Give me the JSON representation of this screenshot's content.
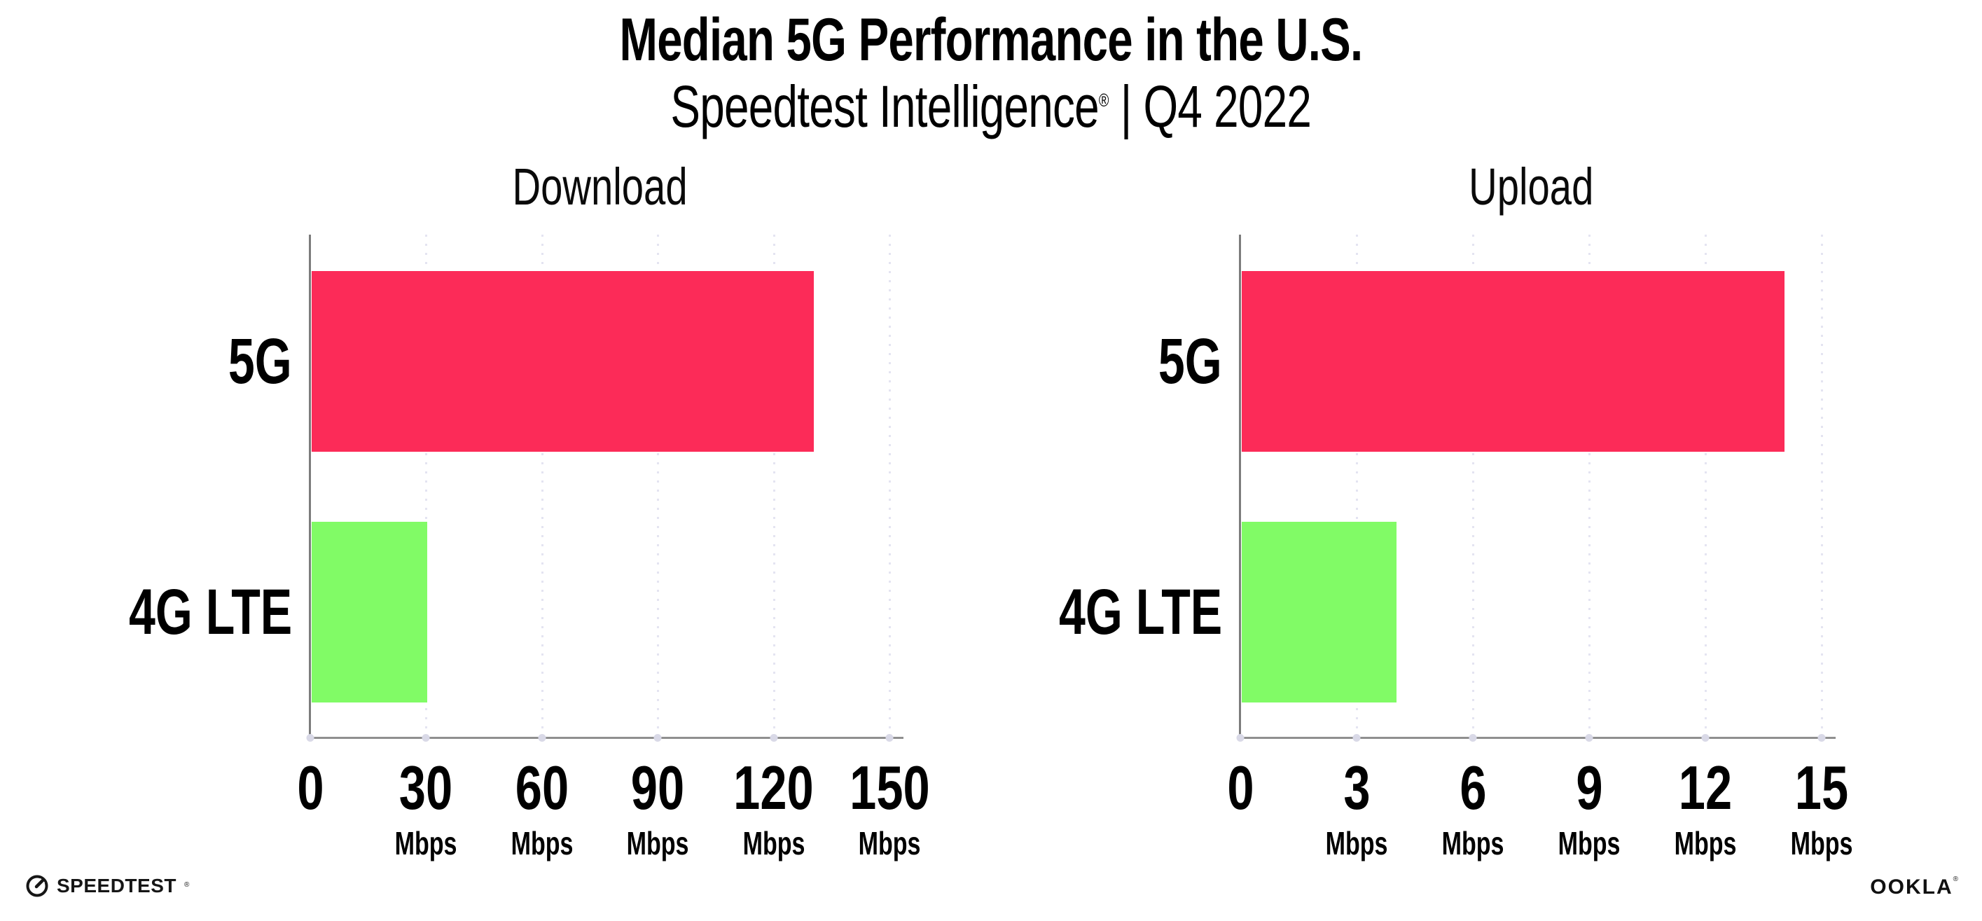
{
  "header": {
    "title": "Median 5G Performance in the U.S.",
    "subtitle_brand": "Speedtest Intelligence",
    "subtitle_mark": "®",
    "subtitle_rest": " | Q4 2022"
  },
  "chart_data": [
    {
      "type": "bar",
      "orientation": "horizontal",
      "title": "Download",
      "categories": [
        "5G",
        "4G LTE"
      ],
      "values": [
        130,
        30
      ],
      "unit": "Mbps",
      "xlim": [
        0,
        150
      ],
      "xticks": [
        0,
        30,
        60,
        90,
        120,
        150
      ],
      "grid": "dotted vertical gridlines at each tick",
      "legend": "none"
    },
    {
      "type": "bar",
      "orientation": "horizontal",
      "title": "Upload",
      "categories": [
        "5G",
        "4G LTE"
      ],
      "values": [
        14,
        4
      ],
      "unit": "Mbps",
      "xlim": [
        0,
        15
      ],
      "xticks": [
        0,
        3,
        6,
        9,
        12,
        15
      ],
      "grid": "dotted vertical gridlines at each tick",
      "legend": "none"
    }
  ],
  "colors": {
    "bar_5g": "#fc2b58",
    "bar_4g_lte": "#81fb66",
    "gridline": "#e4e4f1",
    "axis": "#8a8a8a",
    "axis_dot": "#d9d9e7",
    "text": "#000000"
  },
  "footer": {
    "speedtest_label": "SPEEDTEST",
    "speedtest_mark": "®",
    "ookla_label": "OOKLA",
    "ookla_mark": "®"
  }
}
